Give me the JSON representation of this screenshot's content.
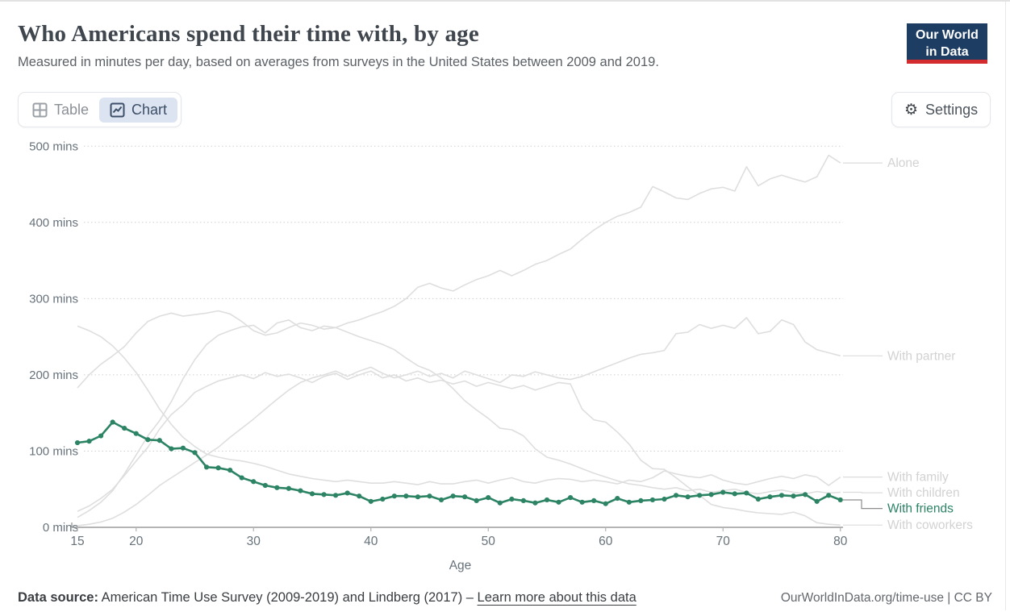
{
  "header": {
    "title": "Who Americans spend their time with, by age",
    "subtitle": "Measured in minutes per day, based on averages from surveys in the United States between 2009 and 2019."
  },
  "logo": {
    "line1": "Our World",
    "line2": "in Data",
    "bg_color": "#1d3d63",
    "bar_color": "#d42b2f"
  },
  "toolbar": {
    "table_label": "Table",
    "chart_label": "Chart",
    "settings_label": "Settings",
    "active_tab": "Chart",
    "active_bg": "#dbe4f0"
  },
  "footer": {
    "source_prefix": "Data source:",
    "source_text": " American Time Use Survey (2009-2019) and Lindberg (2017) – ",
    "link_label": "Learn more about this data",
    "rights": "OurWorldInData.org/time-use | CC BY"
  },
  "chart_data": {
    "type": "line",
    "title": "Who Americans spend their time with, by age",
    "xlabel": "Age",
    "ylabel": "minutes per day",
    "xlim": [
      15,
      80
    ],
    "ylim": [
      0,
      500
    ],
    "x_ticks": [
      15,
      20,
      30,
      40,
      50,
      60,
      70,
      80
    ],
    "y_ticks": [
      {
        "value": 0,
        "label": "0 mins"
      },
      {
        "value": 100,
        "label": "100 mins"
      },
      {
        "value": 200,
        "label": "200 mins"
      },
      {
        "value": 300,
        "label": "300 mins"
      },
      {
        "value": 400,
        "label": "400 mins"
      },
      {
        "value": 500,
        "label": "500 mins"
      }
    ],
    "grid": "horizontal-dotted",
    "legend_position": "right-edge-labels",
    "muted_color": "#dedede",
    "muted_label_color": "#d2d2d2",
    "highlight_color": "#2c8465",
    "x": [
      15,
      16,
      17,
      18,
      19,
      20,
      21,
      22,
      23,
      24,
      25,
      26,
      27,
      28,
      29,
      30,
      31,
      32,
      33,
      34,
      35,
      36,
      37,
      38,
      39,
      40,
      41,
      42,
      43,
      44,
      45,
      46,
      47,
      48,
      49,
      50,
      51,
      52,
      53,
      54,
      55,
      56,
      57,
      58,
      59,
      60,
      61,
      62,
      63,
      64,
      65,
      66,
      67,
      68,
      69,
      70,
      71,
      72,
      73,
      74,
      75,
      76,
      77,
      78,
      79,
      80
    ],
    "series": [
      {
        "name": "Alone",
        "highlight": false,
        "values": [
          183,
          200,
          214,
          225,
          237,
          255,
          270,
          277,
          281,
          277,
          279,
          281,
          284,
          280,
          270,
          258,
          252,
          255,
          262,
          268,
          265,
          260,
          262,
          268,
          272,
          278,
          283,
          290,
          300,
          315,
          320,
          314,
          310,
          318,
          325,
          330,
          337,
          330,
          337,
          345,
          350,
          358,
          365,
          378,
          390,
          400,
          408,
          413,
          420,
          447,
          440,
          432,
          430,
          438,
          444,
          446,
          441,
          473,
          448,
          457,
          462,
          457,
          453,
          460,
          488,
          478
        ]
      },
      {
        "name": "With partner",
        "highlight": false,
        "values": [
          2,
          4,
          7,
          12,
          20,
          30,
          42,
          55,
          65,
          75,
          85,
          95,
          105,
          118,
          130,
          142,
          155,
          168,
          180,
          190,
          196,
          200,
          205,
          198,
          205,
          210,
          202,
          196,
          200,
          205,
          198,
          202,
          196,
          205,
          200,
          195,
          190,
          200,
          198,
          204,
          200,
          196,
          194,
          198,
          204,
          210,
          216,
          222,
          227,
          229,
          232,
          254,
          256,
          266,
          261,
          265,
          261,
          275,
          254,
          257,
          272,
          266,
          243,
          233,
          229,
          225
        ]
      },
      {
        "name": "With family",
        "highlight": false,
        "values": [
          264,
          258,
          250,
          238,
          222,
          203,
          180,
          155,
          135,
          118,
          106,
          96,
          92,
          89,
          87,
          84,
          80,
          75,
          70,
          67,
          64,
          62,
          60,
          62,
          60,
          58,
          58,
          60,
          58,
          56,
          60,
          57,
          57,
          60,
          62,
          58,
          62,
          65,
          60,
          58,
          62,
          64,
          63,
          60,
          62,
          60,
          57,
          62,
          60,
          65,
          74,
          70,
          67,
          65,
          69,
          62,
          58,
          56,
          60,
          64,
          67,
          64,
          69,
          66,
          55,
          66
        ]
      },
      {
        "name": "With children",
        "highlight": false,
        "values": [
          13,
          22,
          33,
          48,
          70,
          95,
          120,
          140,
          165,
          195,
          220,
          240,
          252,
          258,
          263,
          265,
          255,
          268,
          272,
          262,
          258,
          264,
          262,
          256,
          250,
          245,
          240,
          233,
          222,
          212,
          206,
          196,
          182,
          166,
          154,
          143,
          130,
          128,
          120,
          103,
          92,
          88,
          83,
          77,
          71,
          66,
          61,
          57,
          55,
          52,
          50,
          52,
          48,
          50,
          46,
          48,
          50,
          46,
          44,
          47,
          49,
          46,
          44,
          47,
          45,
          46
        ]
      },
      {
        "name": "With friends",
        "highlight": true,
        "values": [
          111,
          113,
          120,
          138,
          130,
          123,
          115,
          114,
          103,
          104,
          98,
          79,
          78,
          75,
          65,
          60,
          55,
          52,
          51,
          48,
          44,
          43,
          42,
          45,
          41,
          34,
          37,
          41,
          41,
          40,
          41,
          36,
          41,
          40,
          35,
          39,
          32,
          37,
          35,
          32,
          36,
          33,
          39,
          33,
          35,
          31,
          38,
          33,
          35,
          36,
          37,
          42,
          40,
          42,
          43,
          46,
          44,
          45,
          37,
          40,
          42,
          41,
          43,
          34,
          42,
          36
        ]
      },
      {
        "name": "With coworkers",
        "highlight": false,
        "values": [
          21,
          28,
          38,
          50,
          68,
          87,
          105,
          129,
          148,
          161,
          177,
          185,
          192,
          196,
          200,
          195,
          203,
          198,
          201,
          196,
          190,
          198,
          202,
          194,
          200,
          205,
          196,
          200,
          192,
          196,
          190,
          193,
          188,
          192,
          185,
          190,
          186,
          182,
          186,
          180,
          185,
          190,
          188,
          155,
          141,
          138,
          125,
          109,
          88,
          77,
          76,
          65,
          53,
          42,
          30,
          26,
          24,
          21,
          19,
          18,
          17,
          20,
          15,
          6,
          4,
          3
        ]
      }
    ]
  }
}
